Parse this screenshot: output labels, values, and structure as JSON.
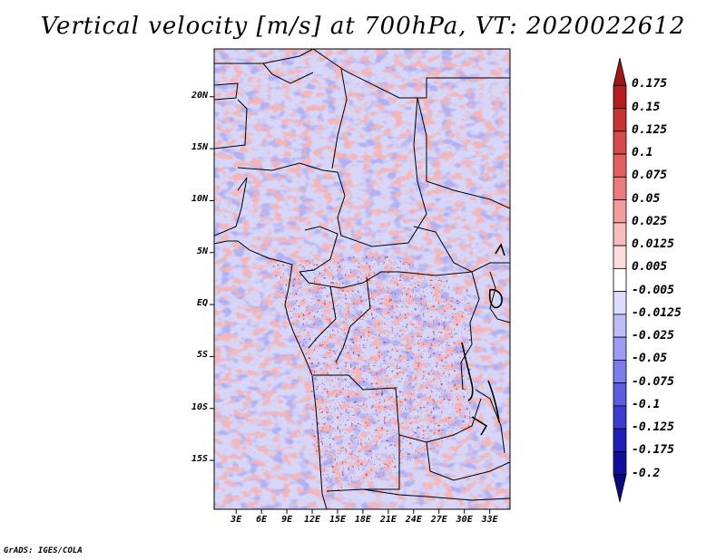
{
  "title": "Vertical velocity [m/s] at 700hPa, VT: 2020022612",
  "credit": "GrADS: IGES/COLA",
  "map": {
    "lat_ticks": [
      {
        "label": "20N",
        "lat": 20
      },
      {
        "label": "15N",
        "lat": 15
      },
      {
        "label": "10N",
        "lat": 10
      },
      {
        "label": "5N",
        "lat": 5
      },
      {
        "label": "EQ",
        "lat": 0
      },
      {
        "label": "5S",
        "lat": -5
      },
      {
        "label": "10S",
        "lat": -10
      },
      {
        "label": "15S",
        "lat": -15
      }
    ],
    "lon_ticks": [
      {
        "label": "3E",
        "lon": 3
      },
      {
        "label": "6E",
        "lon": 6
      },
      {
        "label": "9E",
        "lon": 9
      },
      {
        "label": "12E",
        "lon": 12
      },
      {
        "label": "15E",
        "lon": 15
      },
      {
        "label": "18E",
        "lon": 18
      },
      {
        "label": "21E",
        "lon": 21
      },
      {
        "label": "24E",
        "lon": 24
      },
      {
        "label": "27E",
        "lon": 27
      },
      {
        "label": "30E",
        "lon": 30
      },
      {
        "label": "33E",
        "lon": 33
      }
    ],
    "lon_range": [
      0.4,
      35.4
    ],
    "lat_range": [
      -19.7,
      24.6
    ]
  },
  "colorbar": {
    "levels": [
      "0.175",
      "0.15",
      "0.125",
      "0.1",
      "0.075",
      "0.05",
      "0.025",
      "0.0125",
      "0.005",
      "-0.005",
      "-0.0125",
      "-0.025",
      "-0.05",
      "-0.075",
      "-0.1",
      "-0.125",
      "-0.175",
      "-0.2"
    ],
    "colors": [
      "#a01616",
      "#b41e1e",
      "#c83232",
      "#d84848",
      "#e46060",
      "#ec7c7c",
      "#f49c9c",
      "#f8bcbc",
      "#fcdcdc",
      "#ffffff",
      "#dcdcfc",
      "#bcbcf8",
      "#9c9cf4",
      "#7c7cec",
      "#5c5ce0",
      "#3c3cd0",
      "#2020b8",
      "#10109c",
      "#0a0a80"
    ]
  }
}
